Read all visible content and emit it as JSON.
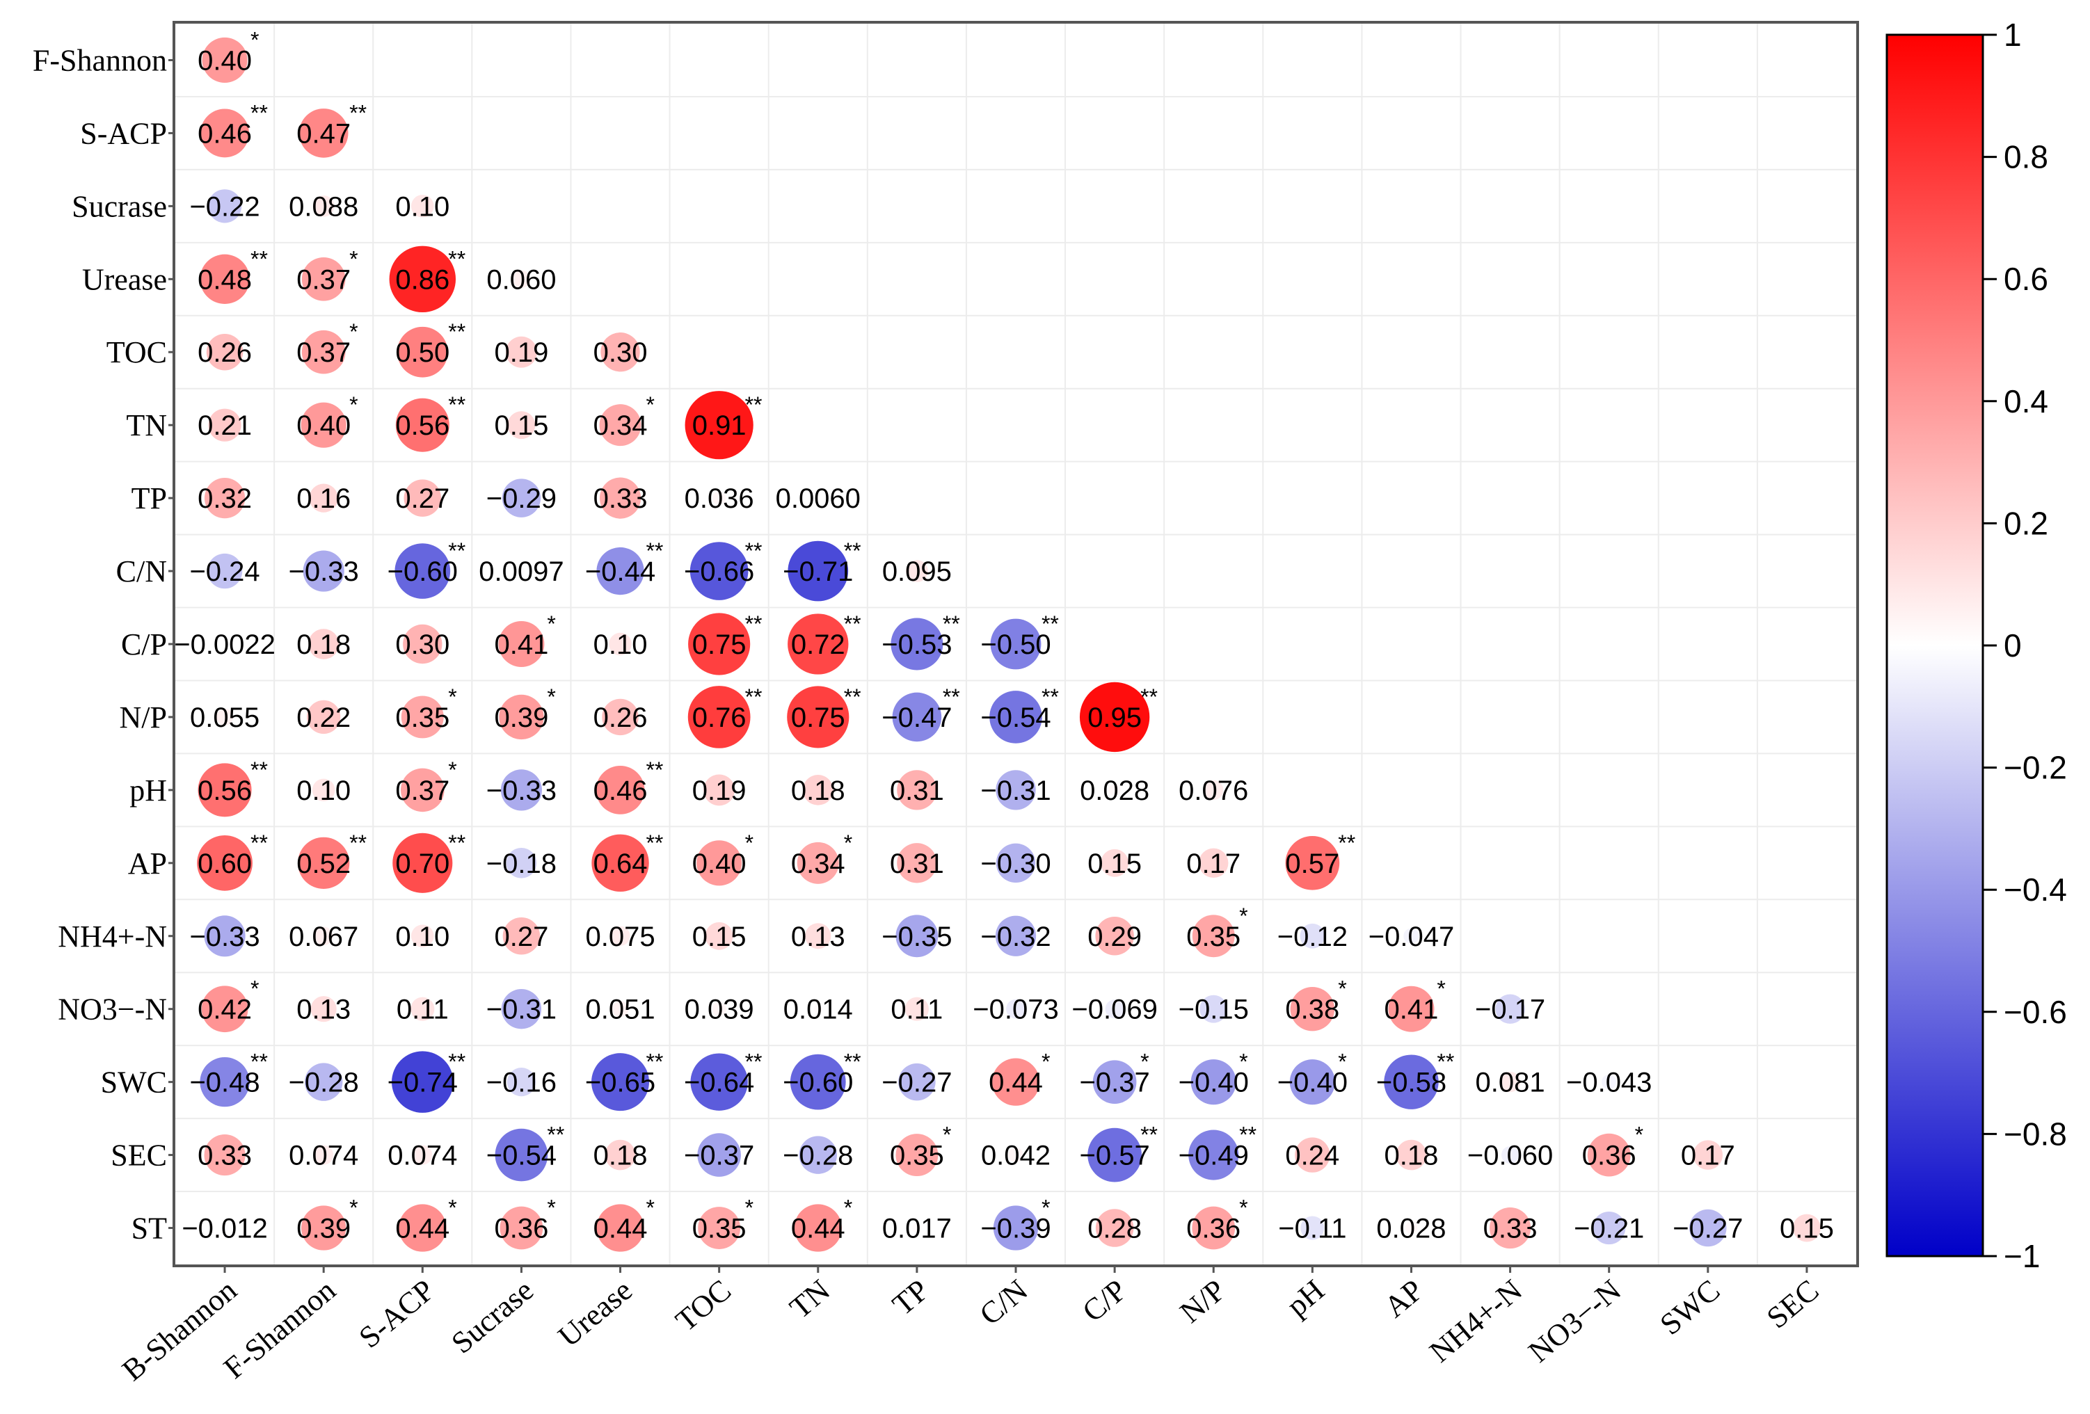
{
  "chart_data": {
    "type": "heatmap",
    "subtype": "correlation-lower-triangle",
    "rows": [
      "F-Shannon",
      "S-ACP",
      "Sucrase",
      "Urease",
      "TOC",
      "TN",
      "TP",
      "C/N",
      "C/P",
      "N/P",
      "pH",
      "AP",
      "NH4+-N",
      "NO3−-N",
      "SWC",
      "SEC",
      "ST"
    ],
    "columns": [
      "B-Shannon",
      "F-Shannon",
      "S-ACP",
      "Sucrase",
      "Urease",
      "TOC",
      "TN",
      "TP",
      "C/N",
      "C/P",
      "N/P",
      "pH",
      "AP",
      "NH4+-N",
      "NO3−-N",
      "SWC",
      "SEC"
    ],
    "values": [
      [
        0.4
      ],
      [
        0.46,
        0.47
      ],
      [
        -0.22,
        0.088,
        0.1
      ],
      [
        0.48,
        0.37,
        0.86,
        0.06
      ],
      [
        0.26,
        0.37,
        0.5,
        0.19,
        0.3
      ],
      [
        0.21,
        0.4,
        0.56,
        0.15,
        0.34,
        0.91
      ],
      [
        0.32,
        0.16,
        0.27,
        -0.29,
        0.33,
        0.036,
        0.006
      ],
      [
        -0.24,
        -0.33,
        -0.6,
        0.0097,
        -0.44,
        -0.66,
        -0.71,
        0.095
      ],
      [
        -0.0022,
        0.18,
        0.3,
        0.41,
        0.1,
        0.75,
        0.72,
        -0.53,
        -0.5
      ],
      [
        0.055,
        0.22,
        0.35,
        0.39,
        0.26,
        0.76,
        0.75,
        -0.47,
        -0.54,
        0.95
      ],
      [
        0.56,
        0.1,
        0.37,
        -0.33,
        0.46,
        0.19,
        0.18,
        0.31,
        -0.31,
        0.028,
        0.076
      ],
      [
        0.6,
        0.52,
        0.7,
        -0.18,
        0.64,
        0.4,
        0.34,
        0.31,
        -0.3,
        0.15,
        0.17,
        0.57
      ],
      [
        -0.33,
        0.067,
        0.1,
        0.27,
        0.075,
        0.15,
        0.13,
        -0.35,
        -0.32,
        0.29,
        0.35,
        -0.12,
        -0.047
      ],
      [
        0.42,
        0.13,
        0.11,
        -0.31,
        0.051,
        0.039,
        0.014,
        0.11,
        -0.073,
        -0.069,
        -0.15,
        0.38,
        0.41,
        -0.17
      ],
      [
        -0.48,
        -0.28,
        -0.74,
        -0.16,
        -0.65,
        -0.64,
        -0.6,
        -0.27,
        0.44,
        -0.37,
        -0.4,
        -0.4,
        -0.58,
        0.081,
        -0.043
      ],
      [
        0.33,
        0.074,
        0.074,
        -0.54,
        0.18,
        -0.37,
        -0.28,
        0.35,
        0.042,
        -0.57,
        -0.49,
        0.24,
        0.18,
        -0.06,
        0.36,
        0.17
      ],
      [
        -0.012,
        0.39,
        0.44,
        0.36,
        0.44,
        0.35,
        0.44,
        0.017,
        -0.39,
        0.28,
        0.36,
        -0.11,
        0.028,
        0.33,
        -0.21,
        -0.27,
        0.15
      ]
    ],
    "labels": [
      [
        "0.40"
      ],
      [
        "0.46",
        "0.47"
      ],
      [
        "−0.22",
        "0.088",
        "0.10"
      ],
      [
        "0.48",
        "0.37",
        "0.86",
        "0.060"
      ],
      [
        "0.26",
        "0.37",
        "0.50",
        "0.19",
        "0.30"
      ],
      [
        "0.21",
        "0.40",
        "0.56",
        "0.15",
        "0.34",
        "0.91"
      ],
      [
        "0.32",
        "0.16",
        "0.27",
        "−0.29",
        "0.33",
        "0.036",
        "0.0060"
      ],
      [
        "−0.24",
        "−0.33",
        "−0.60",
        "0.0097",
        "−0.44",
        "−0.66",
        "−0.71",
        "0.095"
      ],
      [
        "−0.0022",
        "0.18",
        "0.30",
        "0.41",
        "0.10",
        "0.75",
        "0.72",
        "−0.53",
        "−0.50"
      ],
      [
        "0.055",
        "0.22",
        "0.35",
        "0.39",
        "0.26",
        "0.76",
        "0.75",
        "−0.47",
        "−0.54",
        "0.95"
      ],
      [
        "0.56",
        "0.10",
        "0.37",
        "−0.33",
        "0.46",
        "0.19",
        "0.18",
        "0.31",
        "−0.31",
        "0.028",
        "0.076"
      ],
      [
        "0.60",
        "0.52",
        "0.70",
        "−0.18",
        "0.64",
        "0.40",
        "0.34",
        "0.31",
        "−0.30",
        "0.15",
        "0.17",
        "0.57"
      ],
      [
        "−0.33",
        "0.067",
        "0.10",
        "0.27",
        "0.075",
        "0.15",
        "0.13",
        "−0.35",
        "−0.32",
        "0.29",
        "0.35",
        "−0.12",
        "−0.047"
      ],
      [
        "0.42",
        "0.13",
        "0.11",
        "−0.31",
        "0.051",
        "0.039",
        "0.014",
        "0.11",
        "−0.073",
        "−0.069",
        "−0.15",
        "0.38",
        "0.41",
        "−0.17"
      ],
      [
        "−0.48",
        "−0.28",
        "−0.74",
        "−0.16",
        "−0.65",
        "−0.64",
        "−0.60",
        "−0.27",
        "0.44",
        "−0.37",
        "−0.40",
        "−0.40",
        "−0.58",
        "0.081",
        "−0.043"
      ],
      [
        "0.33",
        "0.074",
        "0.074",
        "−0.54",
        "0.18",
        "−0.37",
        "−0.28",
        "0.35",
        "0.042",
        "−0.57",
        "−0.49",
        "0.24",
        "0.18",
        "−0.060",
        "0.36",
        "0.17"
      ],
      [
        "−0.012",
        "0.39",
        "0.44",
        "0.36",
        "0.44",
        "0.35",
        "0.44",
        "0.017",
        "−0.39",
        "0.28",
        "0.36",
        "−0.11",
        "0.028",
        "0.33",
        "−0.21",
        "−0.27",
        "0.15"
      ]
    ],
    "significance": [
      [
        "*"
      ],
      [
        "**",
        "**"
      ],
      [
        "",
        "",
        ""
      ],
      [
        "**",
        "*",
        "**",
        ""
      ],
      [
        "",
        "*",
        "**",
        "",
        ""
      ],
      [
        "",
        "*",
        "**",
        "",
        "*",
        "**"
      ],
      [
        "",
        "",
        "",
        "",
        "",
        "",
        ""
      ],
      [
        "",
        "",
        "**",
        "",
        "**",
        "**",
        "**",
        ""
      ],
      [
        "",
        "",
        "",
        "*",
        "",
        "**",
        "**",
        "**",
        "**"
      ],
      [
        "",
        "",
        "*",
        "*",
        "",
        "**",
        "**",
        "**",
        "**",
        "**"
      ],
      [
        "**",
        "",
        "*",
        "",
        "**",
        "",
        "",
        "",
        "",
        "",
        ""
      ],
      [
        "**",
        "**",
        "**",
        "",
        "**",
        "*",
        "*",
        "",
        "",
        "",
        "",
        "**"
      ],
      [
        "",
        "",
        "",
        "",
        "",
        "",
        "",
        "",
        "",
        "",
        "*",
        "",
        ""
      ],
      [
        "*",
        "",
        "",
        "",
        "",
        "",
        "",
        "",
        "",
        "",
        "",
        "*",
        "*",
        ""
      ],
      [
        "**",
        "",
        "**",
        "",
        "**",
        "**",
        "**",
        "",
        "*",
        "*",
        "*",
        "*",
        "**",
        "",
        ""
      ],
      [
        "",
        "",
        "",
        "**",
        "",
        "",
        "",
        "*",
        "",
        "**",
        "**",
        "",
        "",
        "",
        "*",
        ""
      ],
      [
        "",
        "*",
        "*",
        "*",
        "*",
        "*",
        "*",
        "",
        "*",
        "",
        "*",
        "",
        "",
        "",
        "",
        "",
        ""
      ]
    ],
    "colorbar": {
      "range": [
        -1,
        1
      ],
      "ticks": [
        "1",
        "0.8",
        "0.6",
        "0.4",
        "0.2",
        "0",
        "−0.2",
        "−0.4",
        "−0.6",
        "−0.8",
        "−1"
      ],
      "colors": {
        "negative": "#0000c8",
        "zero": "#ffffff",
        "positive": "#ff0000"
      }
    },
    "grid": true,
    "legend_position": "right"
  }
}
